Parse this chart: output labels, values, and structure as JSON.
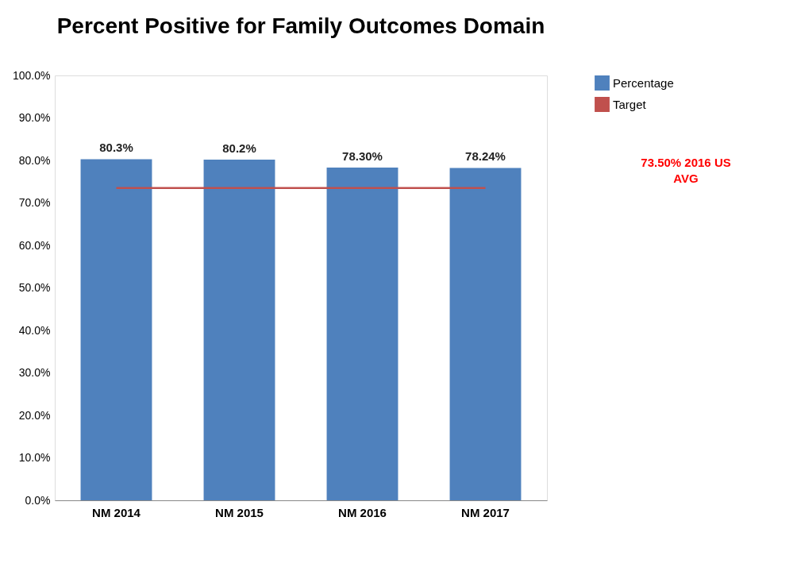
{
  "chart_data": {
    "type": "bar",
    "title": "Percent Positive for Family Outcomes Domain",
    "categories": [
      "NM 2014",
      "NM 2015",
      "NM 2016",
      "NM 2017"
    ],
    "series": [
      {
        "name": "Percentage",
        "color": "#4f81bd",
        "values": [
          80.3,
          80.2,
          78.3,
          78.24
        ],
        "value_labels": [
          "80.3%",
          "80.2%",
          "78.30%",
          "78.24%"
        ]
      },
      {
        "name": "Target",
        "type": "line",
        "color": "#c0504d",
        "values": [
          73.5,
          73.5,
          73.5,
          73.5
        ]
      }
    ],
    "ylim": [
      0,
      100
    ],
    "yticks": [
      {
        "value": 0,
        "label": "0.0%"
      },
      {
        "value": 10,
        "label": "10.0%"
      },
      {
        "value": 20,
        "label": "20.0%"
      },
      {
        "value": 30,
        "label": "30.0%"
      },
      {
        "value": 40,
        "label": "40.0%"
      },
      {
        "value": 50,
        "label": "50.0%"
      },
      {
        "value": 60,
        "label": "60.0%"
      },
      {
        "value": 70,
        "label": "70.0%"
      },
      {
        "value": 80,
        "label": "80.0%"
      },
      {
        "value": 90,
        "label": "90.0%"
      },
      {
        "value": 100,
        "label": "100.0%"
      }
    ],
    "annotations": [
      "73.50% 2016 US AVG"
    ],
    "grid": false,
    "legend": "right"
  }
}
